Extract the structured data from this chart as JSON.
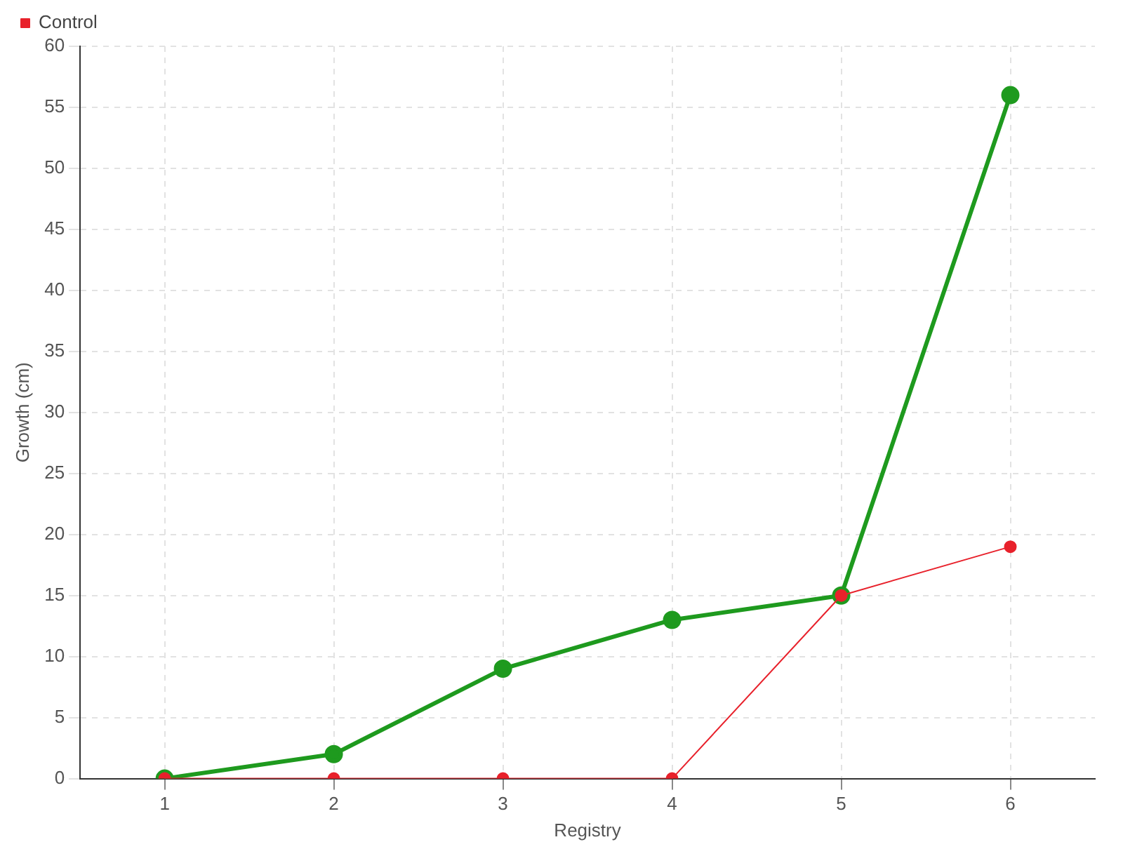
{
  "chart_data": {
    "type": "line",
    "xlabel": "Registry",
    "ylabel": "Growth (cm)",
    "categories": [
      "1",
      "2",
      "3",
      "4",
      "5",
      "6"
    ],
    "series": [
      {
        "color": "#1e9a1e",
        "values": [
          0,
          2,
          9,
          13,
          15,
          56
        ]
      },
      {
        "name": "Control",
        "color": "#e8212b",
        "values": [
          0,
          0,
          0,
          0,
          15,
          19
        ]
      }
    ],
    "ylim": [
      0,
      60
    ],
    "yticks": [
      0,
      5,
      10,
      15,
      20,
      25,
      30,
      35,
      40,
      45,
      50,
      55,
      60
    ],
    "grid": true,
    "legend": "top left",
    "marker": "circle",
    "line_style": "solid"
  }
}
